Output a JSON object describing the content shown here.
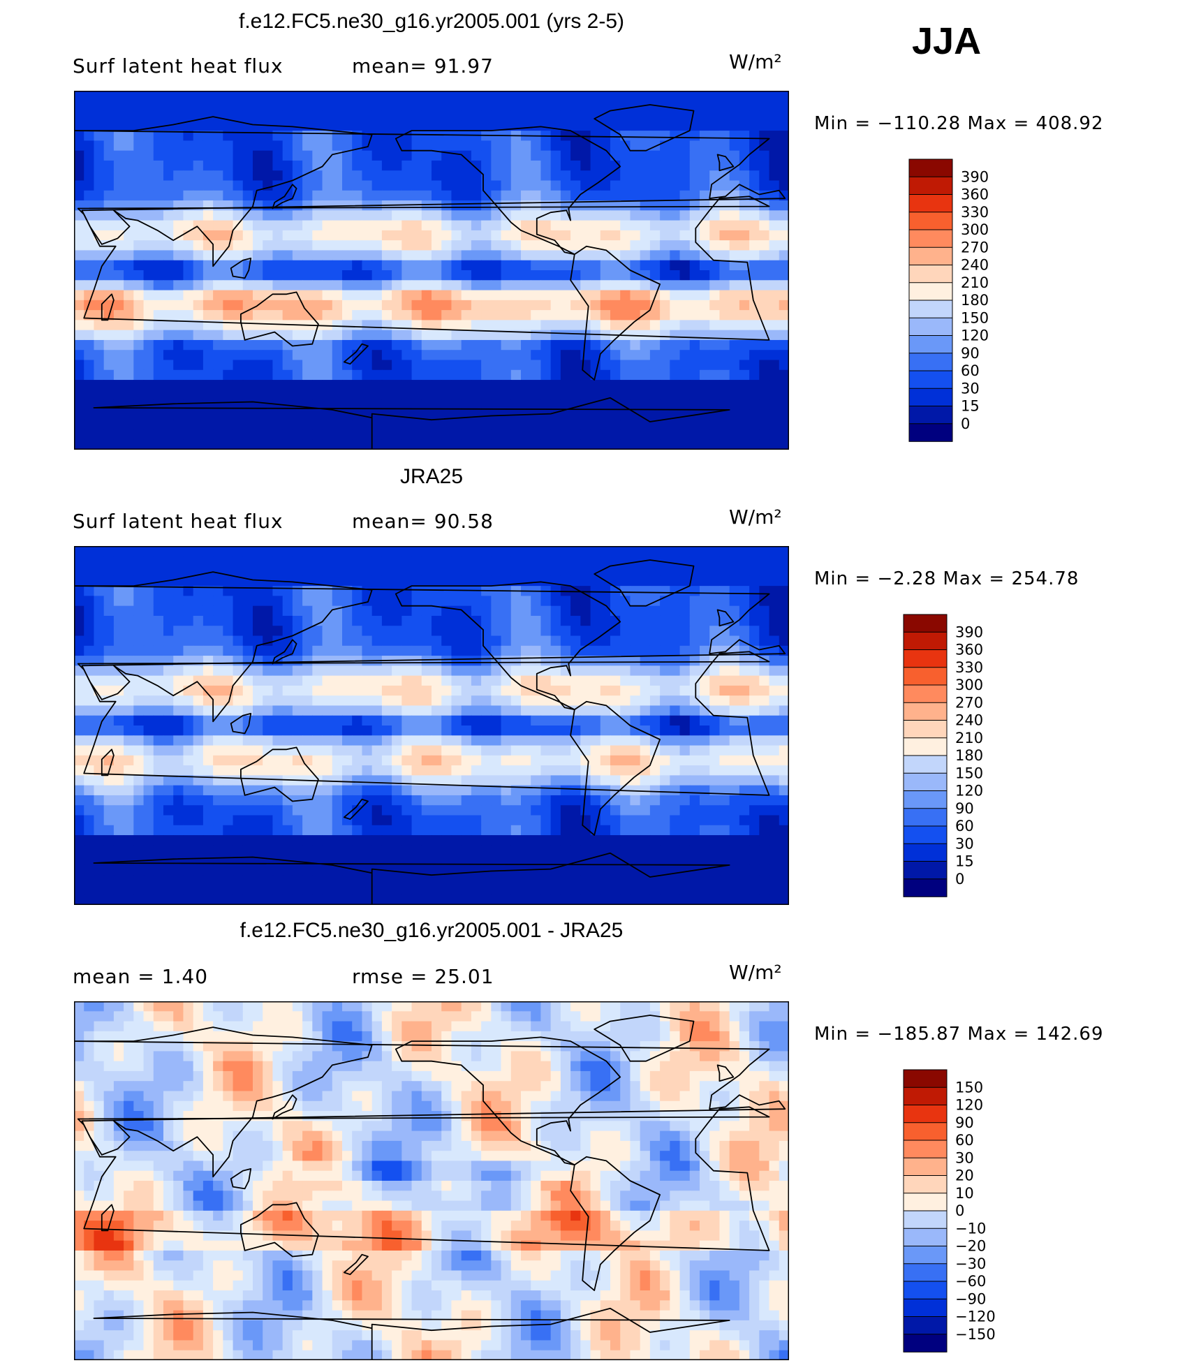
{
  "season": "JJA",
  "colors": {
    "map_levels": [
      "#00007f",
      "#0018a8",
      "#0030d8",
      "#1450f0",
      "#3870f4",
      "#6a98f8",
      "#9ab8fa",
      "#c2d6fb",
      "#d8e8fd",
      "#fff0e0",
      "#ffd6bb",
      "#ffb28c",
      "#ff8a5e",
      "#f8602e",
      "#e83410",
      "#c01a04",
      "#8a0800"
    ],
    "diff_levels": [
      "#00007f",
      "#0018a8",
      "#0030d8",
      "#1450f0",
      "#3870f4",
      "#6a98f8",
      "#9ab8fa",
      "#c2d6fb",
      "#d8e8fd",
      "#fff0e0",
      "#ffd6bb",
      "#ffb28c",
      "#ff8a5e",
      "#f8602e",
      "#e83410",
      "#c01a04",
      "#8a0800"
    ]
  },
  "panels": [
    {
      "title": "f.e12.FC5.ne30_g16.yr2005.001 (yrs 2-5)",
      "left_stat": "Surf  latent  heat  flux",
      "right_stat": "mean=   91.97",
      "unit": "W/m²",
      "minmax": "Min  =  −110.28  Max  =  408.92",
      "colorbar_labels": [
        "390",
        "360",
        "330",
        "300",
        "270",
        "240",
        "210",
        "180",
        "150",
        "120",
        "90",
        "60",
        "30",
        "15",
        "0"
      ],
      "field_kind": "model"
    },
    {
      "title": "JRA25",
      "left_stat": "Surf  latent  heat  flux",
      "right_stat": "mean=   90.58",
      "unit": "W/m²",
      "minmax": "Min  =    −2.28  Max  =  254.78",
      "colorbar_labels": [
        "390",
        "360",
        "330",
        "300",
        "270",
        "240",
        "210",
        "180",
        "150",
        "120",
        "90",
        "60",
        "30",
        "15",
        "0"
      ],
      "field_kind": "obs"
    },
    {
      "title": "f.e12.FC5.ne30_g16.yr2005.001 - JRA25",
      "left_stat": "mean  =     1.40",
      "right_stat": "rmse  =    25.01",
      "unit": "W/m²",
      "minmax": "Min  =  −185.87  Max  =  142.69",
      "colorbar_labels": [
        "150",
        "120",
        "90",
        "60",
        "30",
        "20",
        "10",
        "0",
        "−10",
        "−20",
        "−30",
        "−60",
        "−90",
        "−120",
        "−150"
      ],
      "field_kind": "diff"
    }
  ]
}
